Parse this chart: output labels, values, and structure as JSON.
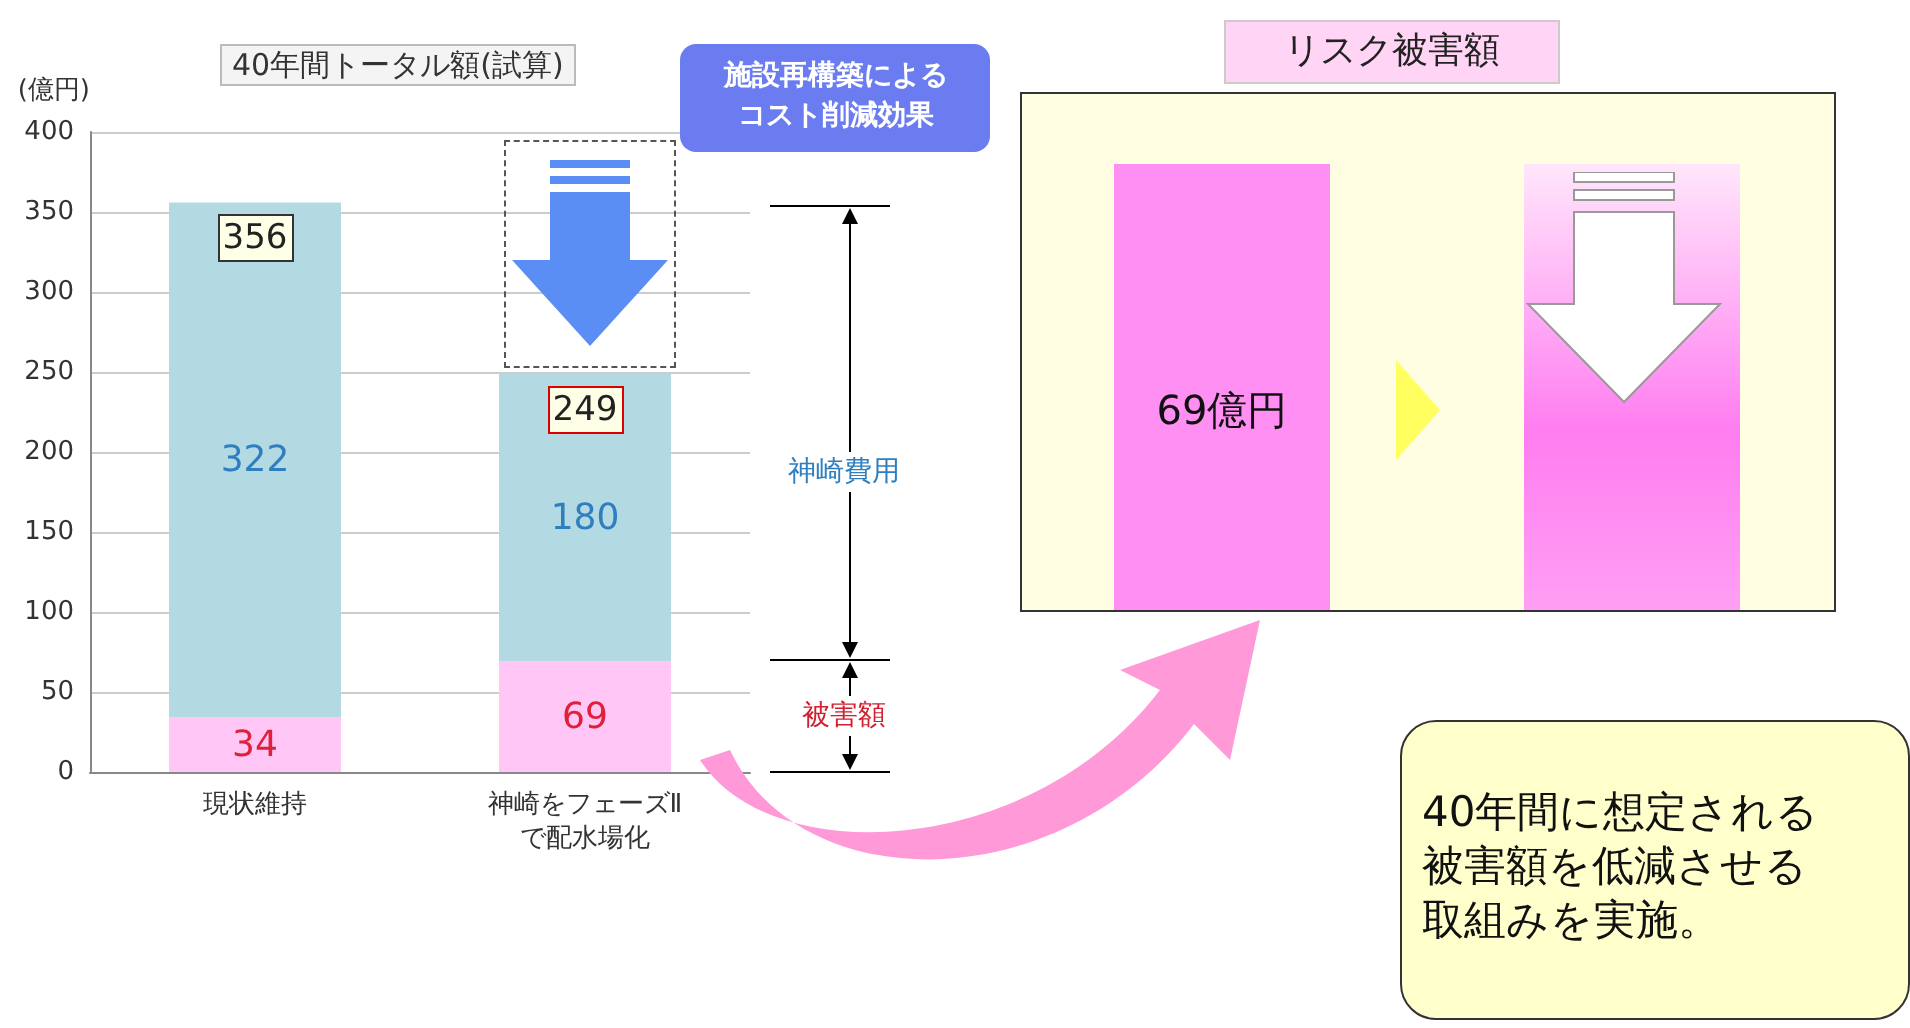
{
  "chart_data": {
    "type": "bar",
    "title": "40年間トータル額(試算)",
    "ylabel": "(億円)",
    "categories": [
      "現状維持",
      "神崎をフェーズⅡ\nで配水場化"
    ],
    "stacked": true,
    "series": [
      {
        "color": "#ffc6f6",
        "values": [
          34,
          69
        ]
      },
      {
        "color": "#b3d9e3",
        "values": [
          322,
          180
        ]
      }
    ],
    "totals": [
      "356",
      "249"
    ],
    "data_labels": true,
    "ylim": [
      0,
      400
    ],
    "yticks": [
      0,
      50,
      100,
      150,
      200,
      250,
      300,
      350,
      400
    ],
    "grid": "y",
    "annotations": [
      "施設再構築によるコスト削減効果",
      "神崎費用",
      "被害額",
      "リスク被害額",
      "69億円",
      "40年間に想定される被害額を低減させる取組みを実施。"
    ]
  }
}
